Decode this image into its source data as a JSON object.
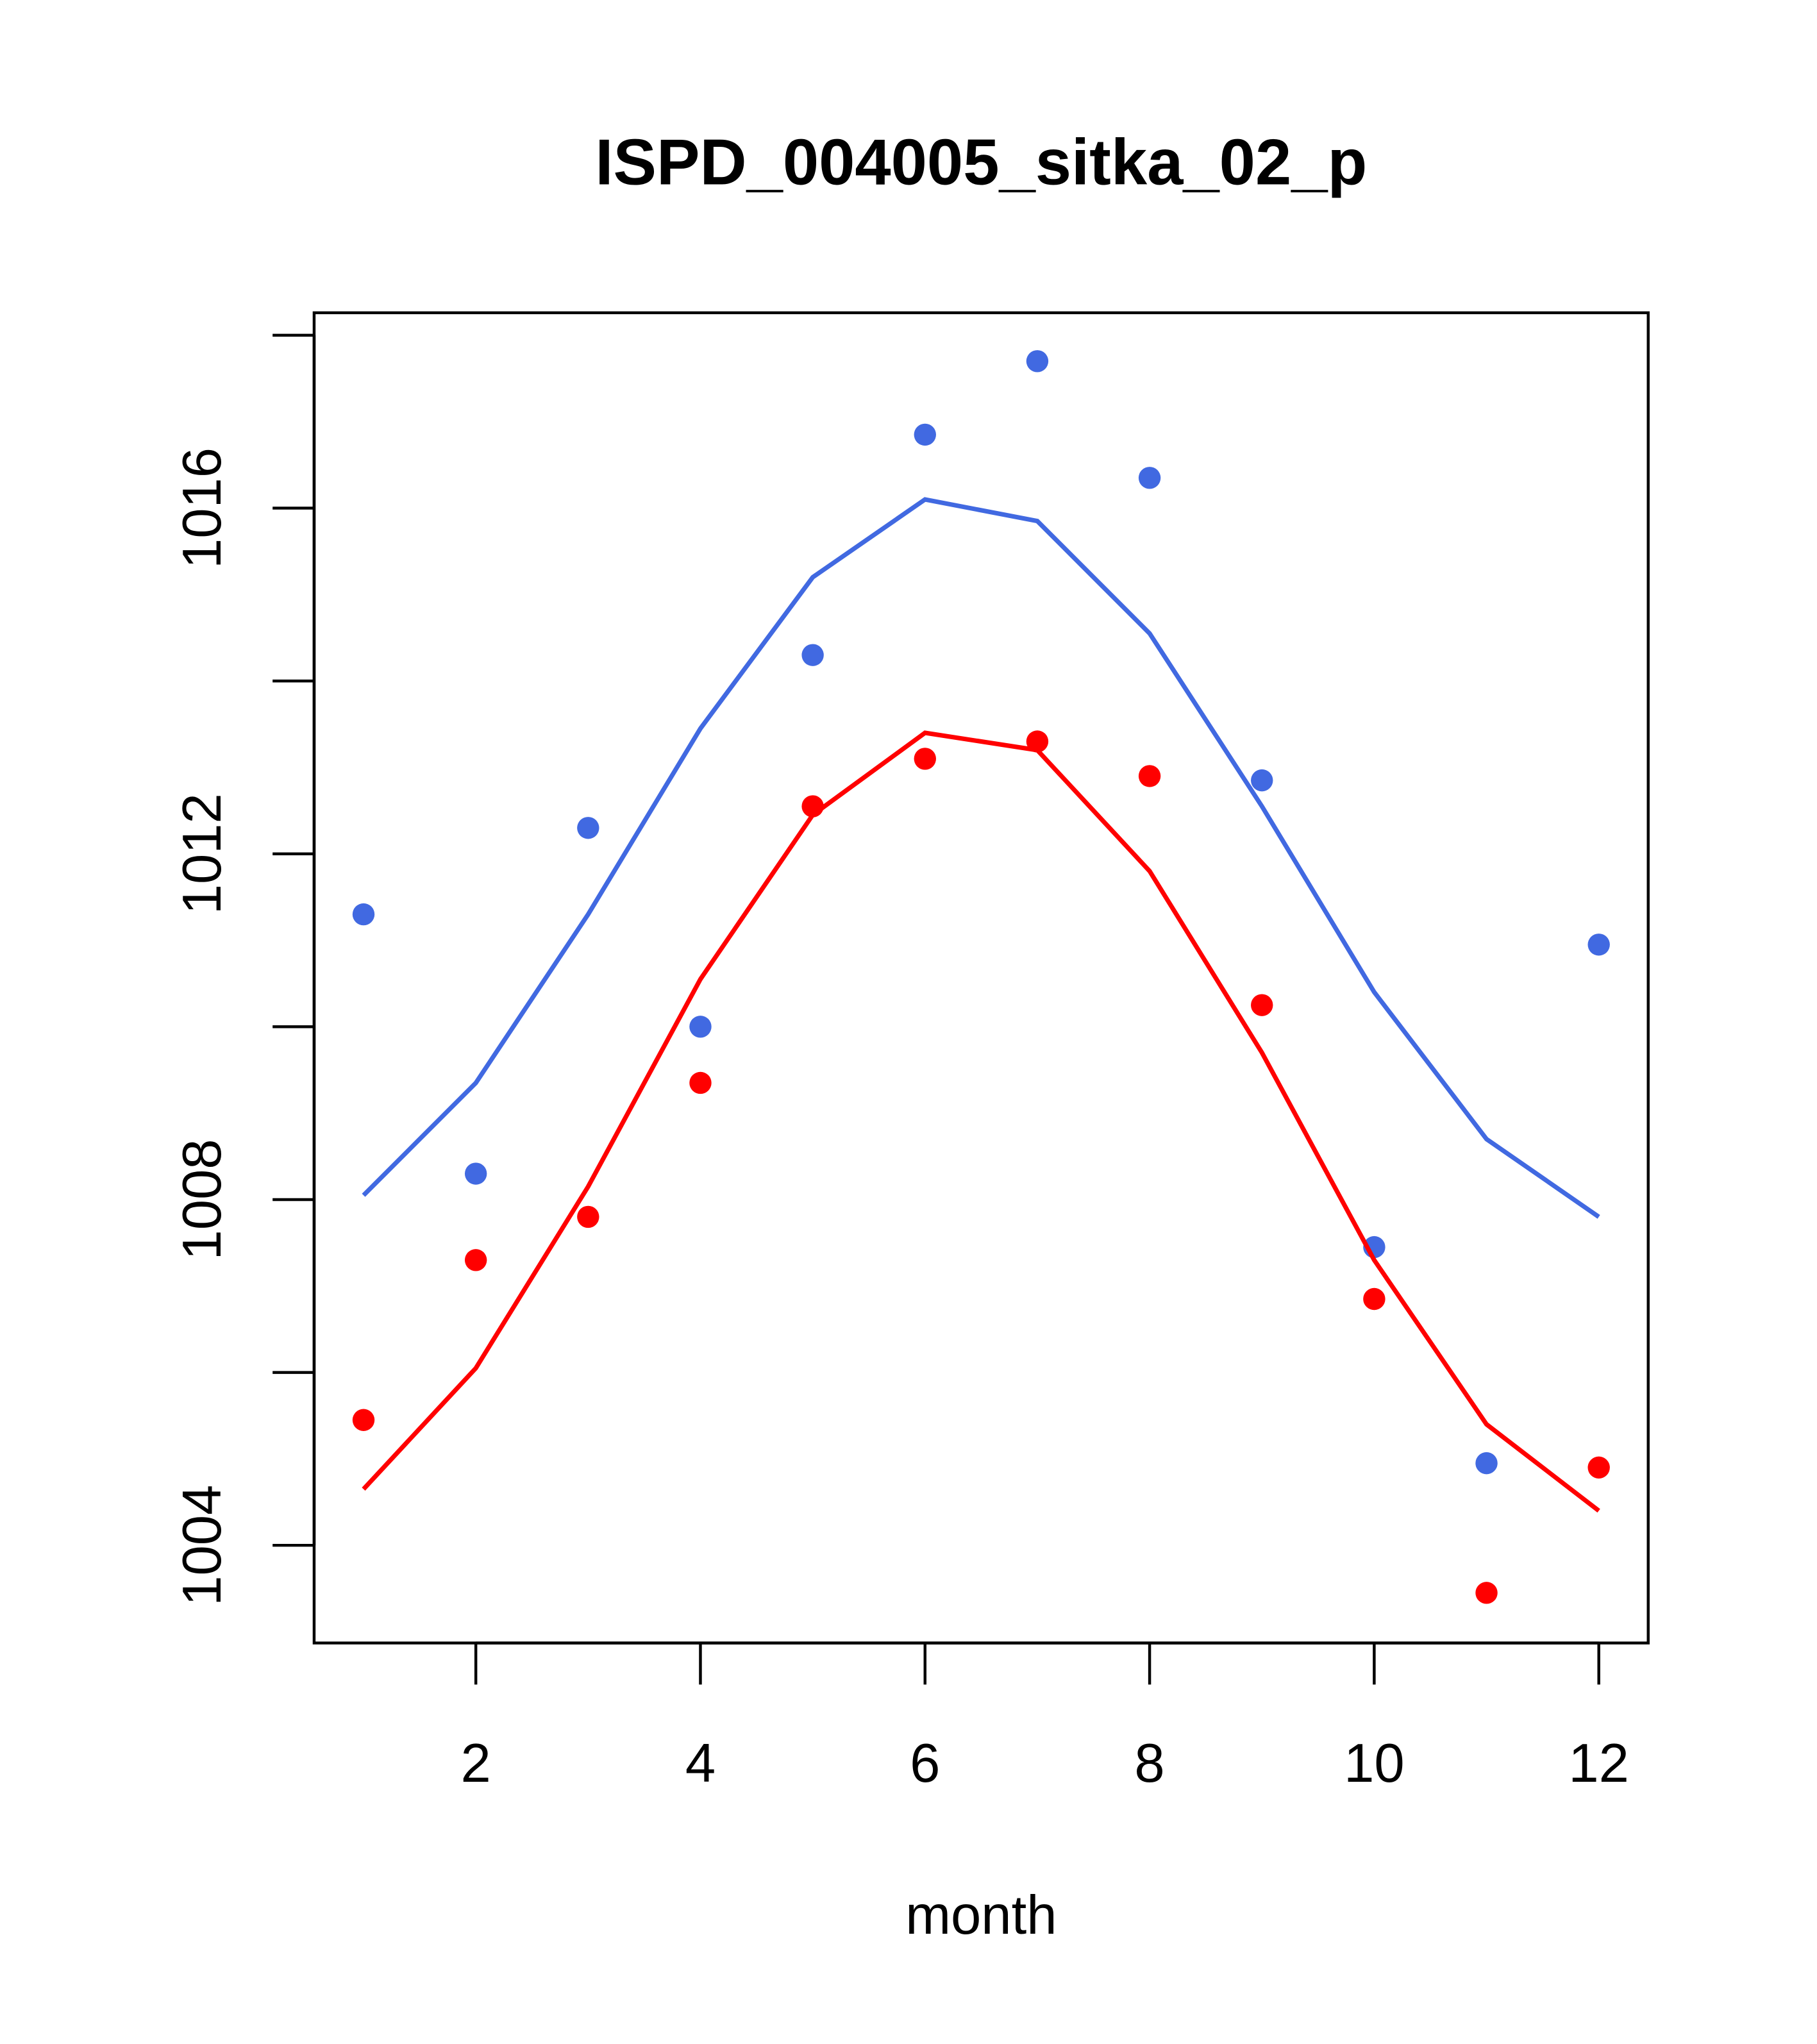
{
  "chart_data": {
    "type": "line",
    "title": "ISPD_004005_sitka_02_p",
    "xlabel": "month",
    "ylabel": "",
    "xlim": [
      0.56,
      12.44
    ],
    "ylim": [
      1002.87,
      1018.26
    ],
    "xticks": [
      2,
      4,
      6,
      8,
      10,
      12
    ],
    "yticks": [
      1004,
      1006,
      1008,
      1010,
      1012,
      1014,
      1016,
      1018
    ],
    "ytick_labels": [
      1004,
      1008,
      1012,
      1016
    ],
    "x": [
      1,
      2,
      3,
      4,
      5,
      6,
      7,
      8,
      9,
      10,
      11,
      12
    ],
    "grid": false,
    "series": [
      {
        "name": "blue-points",
        "kind": "points",
        "color": "#4169E1",
        "values": [
          1011.3,
          1008.3,
          1012.3,
          1010.0,
          1014.3,
          1016.85,
          1017.7,
          1016.35,
          1012.85,
          1007.45,
          1004.95,
          1010.95
        ]
      },
      {
        "name": "blue-line",
        "kind": "line",
        "color": "#4169E1",
        "values": [
          1008.05,
          1009.35,
          1011.3,
          1013.45,
          1015.2,
          1016.1,
          1015.85,
          1014.55,
          1012.55,
          1010.4,
          1008.7,
          1007.8
        ]
      },
      {
        "name": "red-points",
        "kind": "points",
        "color": "#FF0000",
        "values": [
          1005.45,
          1007.3,
          1007.8,
          1009.35,
          1012.55,
          1013.1,
          1013.3,
          1012.9,
          1010.25,
          1006.85,
          1003.45,
          1004.9
        ]
      },
      {
        "name": "red-line",
        "kind": "line",
        "color": "#FF0000",
        "values": [
          1004.65,
          1006.05,
          1008.15,
          1010.55,
          1012.45,
          1013.4,
          1013.2,
          1011.8,
          1009.7,
          1007.3,
          1005.4,
          1004.4
        ]
      }
    ]
  }
}
